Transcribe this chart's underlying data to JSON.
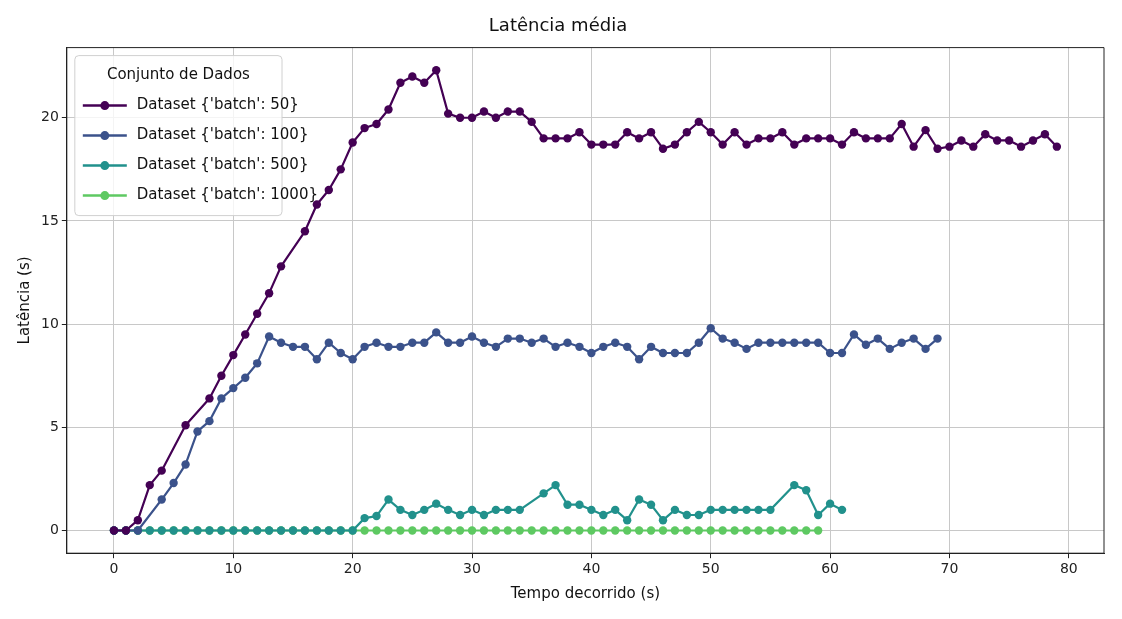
{
  "chart_data": {
    "type": "line",
    "title": "Latência média",
    "xlabel": "Tempo decorrido (s)",
    "ylabel": "Latência (s)",
    "legend_title": "Conjunto de Dados",
    "xlim": [
      -3.95,
      82.95
    ],
    "xticks": [
      0,
      10,
      20,
      30,
      40,
      50,
      60,
      70,
      80
    ],
    "ylim": [
      -1.1,
      23.4
    ],
    "yticks": [
      0,
      5,
      10,
      15,
      20
    ],
    "grid": true,
    "legend": "top left",
    "marker": "circle",
    "line_style": "solid",
    "series": [
      {
        "name": "Dataset {'batch': 50}",
        "color": "#440154",
        "x": [
          0,
          1,
          2,
          3,
          4,
          6,
          8,
          9,
          10,
          11,
          12,
          13,
          14,
          16,
          17,
          18,
          19,
          20,
          21,
          22,
          23,
          24,
          25,
          26,
          27,
          28,
          29,
          30,
          31,
          32,
          33,
          34,
          35,
          36,
          37,
          38,
          39,
          40,
          41,
          42,
          43,
          44,
          45,
          46,
          47,
          48,
          49,
          50,
          51,
          52,
          53,
          54,
          55,
          56,
          57,
          58,
          59,
          60,
          61,
          62,
          63,
          64,
          65,
          66,
          67,
          68,
          69,
          70,
          71,
          72,
          73,
          74,
          75,
          76,
          77,
          78,
          79
        ],
        "values": [
          0,
          0,
          0.5,
          2.2,
          2.9,
          5.1,
          6.4,
          7.5,
          8.5,
          9.5,
          10.5,
          11.5,
          12.8,
          14.5,
          15.8,
          16.5,
          17.5,
          18.8,
          19.5,
          19.7,
          20.4,
          21.7,
          22.0,
          21.7,
          22.3,
          20.2,
          20.0,
          20.0,
          20.3,
          20.0,
          20.3,
          20.3,
          19.8,
          19.0,
          19.0,
          19.0,
          19.3,
          18.7,
          18.7,
          18.7,
          19.3,
          19.0,
          19.3,
          18.5,
          18.7,
          19.3,
          19.8,
          19.3,
          18.7,
          19.3,
          18.7,
          19.0,
          19.0,
          19.3,
          18.7,
          19.0,
          19.0,
          19.0,
          18.7,
          19.3,
          19.0,
          19.0,
          19.0,
          19.7,
          18.6,
          19.4,
          18.5,
          18.6,
          18.9,
          18.6,
          19.2,
          18.9,
          18.9,
          18.6,
          18.9,
          19.2,
          18.6
        ]
      },
      {
        "name": "Dataset {'batch': 100}",
        "color": "#3b528b",
        "x": [
          0,
          1,
          2,
          4,
          5,
          6,
          7,
          8,
          9,
          10,
          11,
          12,
          13,
          14,
          15,
          16,
          17,
          18,
          19,
          20,
          21,
          22,
          23,
          24,
          25,
          26,
          27,
          28,
          29,
          30,
          31,
          32,
          33,
          34,
          35,
          36,
          37,
          38,
          39,
          40,
          41,
          42,
          43,
          44,
          45,
          46,
          47,
          48,
          49,
          50,
          51,
          52,
          53,
          54,
          55,
          56,
          57,
          58,
          59,
          60,
          61,
          62,
          63,
          64,
          65,
          66,
          67,
          68,
          69
        ],
        "values": [
          0,
          0,
          0,
          1.5,
          2.3,
          3.2,
          4.8,
          5.3,
          6.4,
          6.9,
          7.4,
          8.1,
          9.4,
          9.1,
          8.9,
          8.9,
          8.3,
          9.1,
          8.6,
          8.3,
          8.9,
          9.1,
          8.9,
          8.9,
          9.1,
          9.1,
          9.6,
          9.1,
          9.1,
          9.4,
          9.1,
          8.9,
          9.3,
          9.3,
          9.1,
          9.3,
          8.9,
          9.1,
          8.9,
          8.6,
          8.9,
          9.1,
          8.9,
          8.3,
          8.9,
          8.6,
          8.6,
          8.6,
          9.1,
          9.8,
          9.3,
          9.1,
          8.8,
          9.1,
          9.1,
          9.1,
          9.1,
          9.1,
          9.1,
          8.6,
          8.6,
          9.5,
          9.0,
          9.3,
          8.8,
          9.1,
          9.3,
          8.8,
          9.3
        ]
      },
      {
        "name": "Dataset {'batch': 500}",
        "color": "#21918c",
        "x": [
          0,
          1,
          2,
          3,
          4,
          5,
          6,
          7,
          8,
          9,
          10,
          11,
          12,
          13,
          14,
          15,
          16,
          17,
          18,
          19,
          20,
          21,
          22,
          23,
          24,
          25,
          26,
          27,
          28,
          29,
          30,
          31,
          32,
          33,
          34,
          36,
          37,
          38,
          39,
          40,
          41,
          42,
          43,
          44,
          45,
          46,
          47,
          48,
          49,
          50,
          51,
          52,
          53,
          54,
          55,
          57,
          58,
          59,
          60,
          61
        ],
        "values": [
          0,
          0,
          0,
          0,
          0,
          0,
          0,
          0,
          0,
          0,
          0,
          0,
          0,
          0,
          0,
          0,
          0,
          0,
          0,
          0,
          0,
          0.6,
          0.7,
          1.5,
          1.0,
          0.75,
          1.0,
          1.3,
          1.0,
          0.75,
          1.0,
          0.75,
          1.0,
          1.0,
          1.0,
          1.8,
          2.2,
          1.25,
          1.25,
          1.0,
          0.75,
          1.0,
          0.5,
          1.5,
          1.25,
          0.5,
          1.0,
          0.75,
          0.75,
          1.0,
          1.0,
          1.0,
          1.0,
          1.0,
          1.0,
          2.2,
          1.95,
          0.75,
          1.3,
          1.0
        ]
      },
      {
        "name": "Dataset {'batch': 1000}",
        "color": "#5ec962",
        "x": [
          0,
          1,
          2,
          3,
          4,
          5,
          6,
          7,
          8,
          9,
          10,
          11,
          12,
          13,
          14,
          15,
          16,
          17,
          18,
          19,
          20,
          21,
          22,
          23,
          24,
          25,
          26,
          27,
          28,
          29,
          30,
          31,
          32,
          33,
          34,
          35,
          36,
          37,
          38,
          39,
          40,
          41,
          42,
          43,
          44,
          45,
          46,
          47,
          48,
          49,
          50,
          51,
          52,
          53,
          54,
          55,
          56,
          57,
          58,
          59
        ],
        "values": [
          0,
          0,
          0,
          0,
          0,
          0,
          0,
          0,
          0,
          0,
          0,
          0,
          0,
          0,
          0,
          0,
          0,
          0,
          0,
          0,
          0,
          0,
          0,
          0,
          0,
          0,
          0,
          0,
          0,
          0,
          0,
          0,
          0,
          0,
          0,
          0,
          0,
          0,
          0,
          0,
          0,
          0,
          0,
          0,
          0,
          0,
          0,
          0,
          0,
          0,
          0,
          0,
          0,
          0,
          0,
          0,
          0,
          0,
          0,
          0
        ]
      }
    ]
  }
}
